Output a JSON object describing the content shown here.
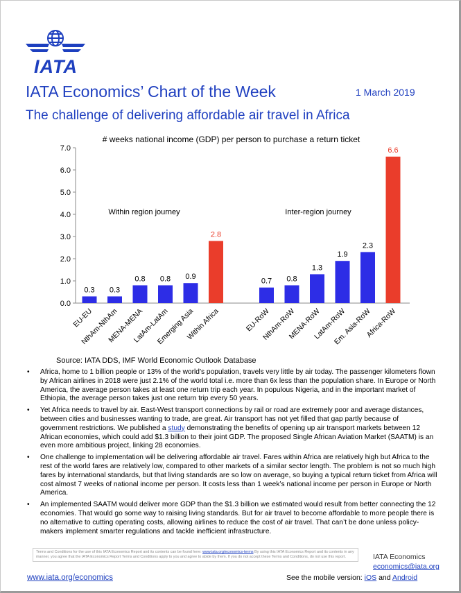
{
  "header": {
    "logo_text": "IATA",
    "series_title": "IATA Economics’ Chart of the Week",
    "date": "1 March 2019",
    "headline": "The challenge of delivering affordable air travel in Africa"
  },
  "colors": {
    "brand_blue": "#1d3fbf",
    "bar_blue": "#2d2de6",
    "bar_red": "#ea3d2b"
  },
  "chart_data": {
    "type": "bar",
    "title": "# weeks national income (GDP) per person to purchase a return ticket",
    "ylim": [
      0,
      7
    ],
    "yticks": [
      "0.0",
      "1.0",
      "2.0",
      "3.0",
      "4.0",
      "5.0",
      "6.0",
      "7.0"
    ],
    "grid": false,
    "groups": [
      {
        "label": "Within region journey",
        "categories": [
          "EU-EU",
          "NthAm-NthAm",
          "MENA-MENA",
          "LatAm-LatAm",
          "Emerging Asia",
          "Within Africa"
        ],
        "values": [
          0.3,
          0.3,
          0.8,
          0.8,
          0.9,
          2.8
        ],
        "labels": [
          "0.3",
          "0.3",
          "0.8",
          "0.8",
          "0.9",
          "2.8"
        ]
      },
      {
        "label": "Inter-region journey",
        "categories": [
          "EU-RoW",
          "NthAm-RoW",
          "MENA-RoW",
          "LatAm-RoW",
          "Em. Asia-RoW",
          "Africa-RoW"
        ],
        "values": [
          0.7,
          0.8,
          1.3,
          1.9,
          2.3,
          6.6
        ],
        "labels": [
          "0.7",
          "0.8",
          "1.3",
          "1.9",
          "2.3",
          "6.6"
        ]
      }
    ]
  },
  "source": "Source: IATA DDS, IMF World Economic Outlook Database",
  "bullets": [
    {
      "text": "Africa, home to 1 billion people or 13% of the world’s population, travels very little by air today. The passenger kilometers flown by African airlines in 2018 were just 2.1% of the world total i.e. more than 6x less than the population share. In Europe or North America, the average person takes at least one return trip each year. In populous Nigeria, and in the important market of Ethiopia, the average person takes just one return trip every 50 years."
    },
    {
      "text_before": "Yet Africa needs to travel by air. East-West transport connections by rail or road are extremely poor and average distances, between cities and businesses wanting to trade, are great. Air transport has not yet filled that gap partly because of government restrictions. We published a ",
      "link": "study",
      "text_after": " demonstrating the benefits of opening up air transport markets between 12 African economies, which could add $1.3 billion to their joint GDP. The proposed Single African Aviation Market (SAATM) is an even more ambitious project, linking 28 economies."
    },
    {
      "text": "One challenge to implementation will be delivering affordable air travel. Fares within Africa are relatively high but Africa to the rest of the world fares are relatively low, compared to other markets of a similar sector length. The problem is not so much high fares by international standards, but that living standards are so low on average, so buying a typical return ticket from Africa will cost almost 7 weeks of national income per person. It costs less than 1 week’s national income per person in Europe or North America."
    },
    {
      "text": "An implemented SAATM would deliver more GDP than the $1.3 billion we estimated would result from better connecting the 12 economies. That would go some way to raising living standards. But for air travel to become affordable to more people there is no alternative to cutting operating costs, allowing airlines to reduce the cost of air travel. That can’t be done unless policy-makers implement smarter regulations and tackle inefficient infrastructure."
    }
  ],
  "footer": {
    "terms_before": "Terms and Conditions for the use of this IATA Economics Report and its contents can be found here: ",
    "terms_link": "www.iata.org/economics-terms",
    "terms_after": " By using this IATA Economics Report and its contents in any manner, you agree that the IATA Economics Report Terms and Conditions apply to you and agree to abide by them. If you do not accept these Terms and Conditions, do not use this report.",
    "org_name": "IATA Economics",
    "email": "economics@iata.org",
    "website": "www.iata.org/economics",
    "mobile_label": "See the mobile version: ",
    "ios": "iOS",
    "and": " and ",
    "android": "Android"
  }
}
